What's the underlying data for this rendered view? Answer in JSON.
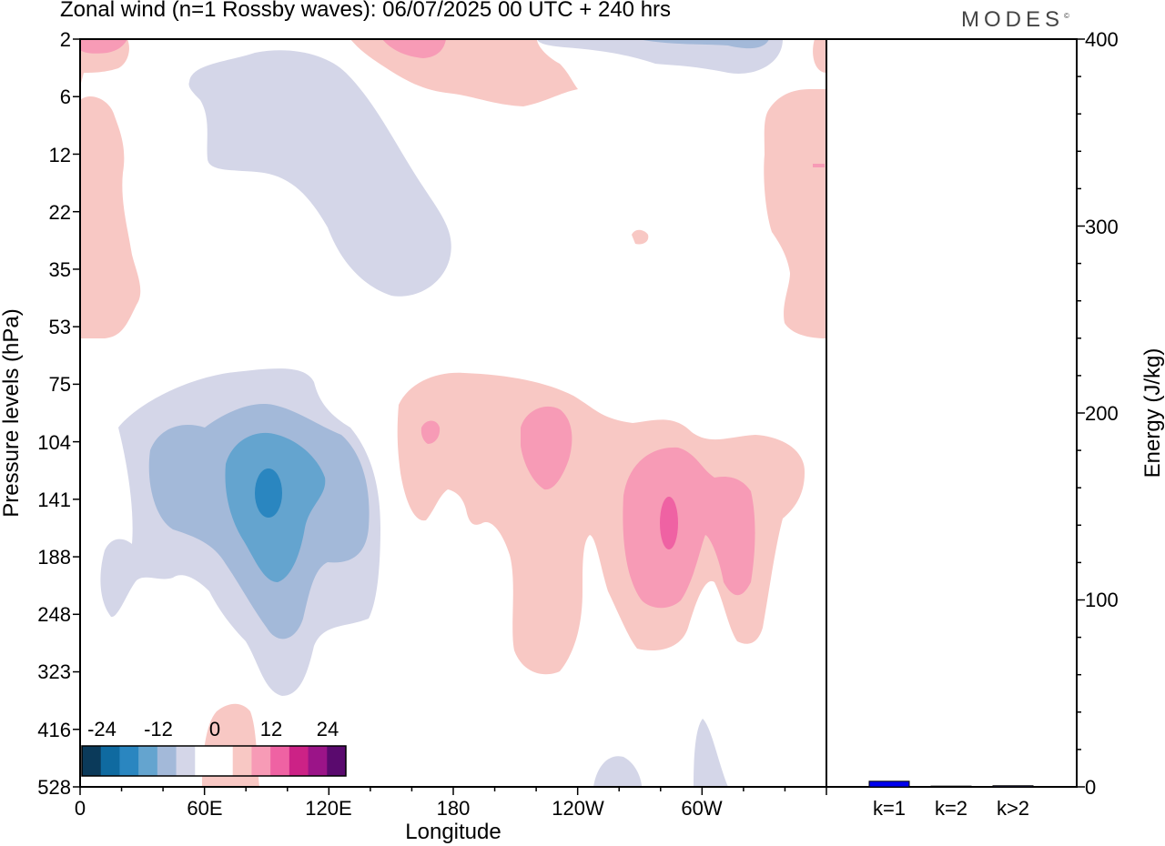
{
  "header": {
    "title": "Zonal wind (n=1 Rossby waves):  06/07/2025  00 UTC  + 240 hrs",
    "brand": "MODES"
  },
  "chart_data": [
    {
      "type": "heatmap",
      "title": "Zonal wind (n=1 Rossby waves):  06/07/2025  00 UTC  + 240 hrs",
      "xlabel": "Longitude",
      "ylabel": "Pressure levels (hPa)",
      "x_ticks": [
        "0",
        "60E",
        "120E",
        "180",
        "120W",
        "60W"
      ],
      "y_ticks": [
        "2",
        "6",
        "12",
        "22",
        "35",
        "53",
        "75",
        "104",
        "141",
        "188",
        "248",
        "323",
        "416",
        "528"
      ],
      "colorbar": {
        "labels": [
          "-24",
          "-12",
          "0",
          "12",
          "24"
        ],
        "colors": [
          "#0b3a5a",
          "#0f6aa0",
          "#2a86c0",
          "#64a4cf",
          "#a3b9d9",
          "#d4d6e8",
          "#ffffff",
          "#ffffff",
          "#f8c8c4",
          "#f79bb6",
          "#ef62a3",
          "#cc2286",
          "#9b1488",
          "#5a0a6e"
        ]
      },
      "contours": [
        {
          "level": "-3",
          "color": "#d4d6e8",
          "regions": [
            {
              "lon": 88,
              "level": 141,
              "lon_width": 58,
              "level_span": "104–248"
            },
            {
              "lon": 55,
              "level": 22,
              "lon_width": 30,
              "level_span": "6–35"
            }
          ]
        },
        {
          "level": "-6",
          "color": "#a3b9d9",
          "regions": [
            {
              "lon": 80,
              "level": 141,
              "lon_width": 45,
              "level_span": "104–248"
            }
          ]
        },
        {
          "level": "-9",
          "color": "#64a4cf",
          "regions": [
            {
              "lon": 90,
              "level": 141,
              "lon_width": 22,
              "level_span": "104–188"
            }
          ]
        },
        {
          "level": "-12",
          "color": "#2a86c0",
          "regions": [
            {
              "lon": 92,
              "level": 141,
              "lon_width": 5,
              "level_span": "104–141"
            }
          ]
        },
        {
          "level": "3",
          "color": "#f8c8c4",
          "regions": [
            {
              "lon": 245,
              "level": 141,
              "lon_width": 100,
              "level_span": "75–323"
            },
            {
              "lon": 0,
              "level": 22,
              "lon_width": 14,
              "level_span": "2–53"
            },
            {
              "lon": 360,
              "level": 22,
              "lon_width": 14,
              "level_span": "2–53"
            },
            {
              "lon": 195,
              "level": 2,
              "lon_width": 40,
              "level_span": "2–6"
            },
            {
              "lon": 72,
              "level": 528,
              "lon_width": 12,
              "level_span": "416–528"
            }
          ]
        },
        {
          "level": "6",
          "color": "#f79bb6",
          "regions": [
            {
              "lon": 285,
              "level": 141,
              "lon_width": 40,
              "level_span": "104–248"
            },
            {
              "lon": 225,
              "level": 104,
              "lon_width": 12,
              "level_span": "104–141"
            }
          ]
        },
        {
          "level": "9",
          "color": "#ef62a3",
          "regions": [
            {
              "lon": 283,
              "level": 141,
              "lon_width": 6,
              "level_span": "141–188"
            }
          ]
        }
      ]
    },
    {
      "type": "bar",
      "ylabel": "Energy (J/kg)",
      "ylim": [
        0,
        400
      ],
      "y_ticks": [
        "0",
        "100",
        "200",
        "300",
        "400"
      ],
      "categories": [
        "k=1",
        "k=2",
        "k>2"
      ],
      "values": [
        3,
        0.4,
        0.6
      ],
      "bar_color": "#0000ee"
    }
  ]
}
